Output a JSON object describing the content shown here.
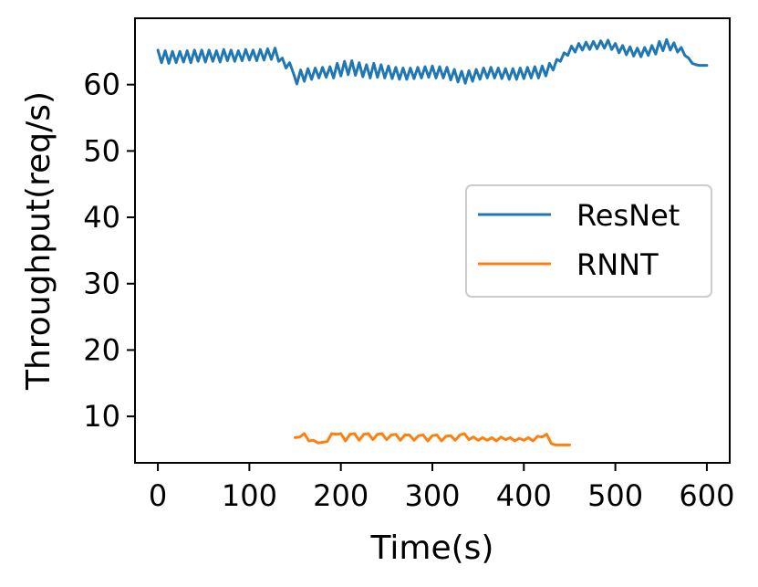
{
  "chart_data": {
    "type": "line",
    "xlabel": "Time(s)",
    "ylabel": "Throughput(req/s)",
    "xlim": [
      -25,
      625
    ],
    "ylim": [
      3,
      70
    ],
    "xticks": [
      0,
      100,
      200,
      300,
      400,
      500,
      600
    ],
    "yticks": [
      10,
      20,
      30,
      40,
      50,
      60
    ],
    "grid": false,
    "legend_position": "center-right",
    "series": [
      {
        "name": "ResNet",
        "color": "#1f77b4",
        "x": [
          0,
          4,
          8,
          12,
          16,
          20,
          24,
          28,
          32,
          36,
          40,
          44,
          48,
          52,
          56,
          60,
          64,
          68,
          72,
          76,
          80,
          84,
          88,
          92,
          96,
          100,
          104,
          108,
          112,
          116,
          120,
          124,
          128,
          132,
          136,
          140,
          144,
          148,
          152,
          156,
          160,
          164,
          168,
          172,
          176,
          180,
          184,
          188,
          192,
          196,
          200,
          204,
          208,
          212,
          216,
          220,
          224,
          228,
          232,
          236,
          240,
          244,
          248,
          252,
          256,
          260,
          264,
          268,
          272,
          276,
          280,
          284,
          288,
          292,
          296,
          300,
          304,
          308,
          312,
          316,
          320,
          324,
          328,
          332,
          336,
          340,
          344,
          348,
          352,
          356,
          360,
          364,
          368,
          372,
          376,
          380,
          384,
          388,
          392,
          396,
          400,
          404,
          408,
          412,
          416,
          420,
          424,
          428,
          432,
          436,
          440,
          444,
          448,
          452,
          456,
          460,
          464,
          468,
          472,
          476,
          480,
          484,
          488,
          492,
          496,
          500,
          504,
          508,
          512,
          516,
          520,
          524,
          528,
          532,
          536,
          540,
          544,
          548,
          552,
          556,
          560,
          564,
          568,
          572,
          576,
          580,
          584,
          588,
          592,
          596,
          600
        ],
        "values": [
          65.2,
          63.3,
          65.1,
          63.2,
          65.0,
          63.3,
          65.0,
          63.4,
          65.1,
          63.3,
          65.2,
          63.5,
          65.2,
          63.4,
          65.2,
          63.5,
          65.1,
          63.4,
          65.3,
          63.6,
          65.2,
          63.5,
          65.1,
          63.6,
          65.3,
          63.7,
          65.2,
          63.6,
          65.3,
          63.7,
          65.4,
          63.8,
          65.5,
          63.5,
          64.0,
          62.5,
          63.3,
          61.8,
          60.1,
          62.2,
          60.5,
          62.4,
          60.8,
          62.5,
          61.0,
          62.6,
          61.1,
          62.7,
          61.0,
          63.2,
          61.3,
          63.5,
          61.5,
          63.6,
          61.4,
          63.3,
          61.2,
          63.0,
          61.0,
          63.2,
          61.1,
          63.0,
          61.0,
          62.8,
          60.9,
          62.6,
          60.8,
          62.5,
          60.8,
          62.5,
          60.9,
          62.6,
          61.0,
          62.7,
          61.1,
          62.8,
          61.0,
          62.7,
          61.0,
          62.6,
          60.7,
          62.3,
          60.4,
          62.0,
          60.2,
          62.1,
          60.5,
          62.3,
          60.8,
          62.5,
          61.0,
          62.6,
          61.0,
          62.5,
          60.9,
          62.4,
          60.8,
          62.4,
          60.8,
          62.5,
          60.9,
          62.6,
          61.0,
          62.7,
          61.0,
          62.8,
          61.3,
          63.2,
          62.2,
          63.8,
          63.5,
          64.8,
          64.4,
          65.8,
          64.9,
          66.2,
          65.2,
          66.4,
          65.3,
          66.5,
          65.4,
          66.6,
          65.5,
          66.7,
          65.3,
          66.2,
          64.8,
          65.9,
          64.5,
          65.7,
          64.3,
          65.5,
          64.2,
          65.6,
          64.4,
          65.9,
          64.6,
          66.5,
          65.1,
          66.8,
          65.2,
          66.3,
          64.9,
          65.6,
          64.4,
          64.0,
          63.2,
          63.0,
          62.9,
          62.9,
          62.9
        ]
      },
      {
        "name": "RNNT",
        "color": "#ff7f0e",
        "x": [
          150,
          155,
          160,
          165,
          170,
          175,
          180,
          185,
          190,
          195,
          200,
          205,
          210,
          215,
          220,
          225,
          230,
          235,
          240,
          245,
          250,
          255,
          260,
          265,
          270,
          275,
          280,
          285,
          290,
          295,
          300,
          305,
          310,
          315,
          320,
          325,
          330,
          335,
          340,
          345,
          350,
          355,
          360,
          365,
          370,
          375,
          380,
          385,
          390,
          395,
          400,
          405,
          410,
          415,
          420,
          425,
          430,
          435,
          440,
          445,
          450
        ],
        "values": [
          6.8,
          6.9,
          7.4,
          6.3,
          6.4,
          6.0,
          6.1,
          6.2,
          7.4,
          7.3,
          7.4,
          6.3,
          7.3,
          7.4,
          6.4,
          7.3,
          7.4,
          6.5,
          7.3,
          7.4,
          6.5,
          7.2,
          7.3,
          6.4,
          7.2,
          7.2,
          6.4,
          7.1,
          7.2,
          6.3,
          7.1,
          7.2,
          6.3,
          7.0,
          7.1,
          6.4,
          7.2,
          7.4,
          6.5,
          6.9,
          6.4,
          6.8,
          6.4,
          6.8,
          6.3,
          6.9,
          6.5,
          6.8,
          6.3,
          6.7,
          6.4,
          6.8,
          6.3,
          7.0,
          6.9,
          7.3,
          5.9,
          5.7,
          5.7,
          5.7,
          5.7
        ]
      }
    ]
  }
}
